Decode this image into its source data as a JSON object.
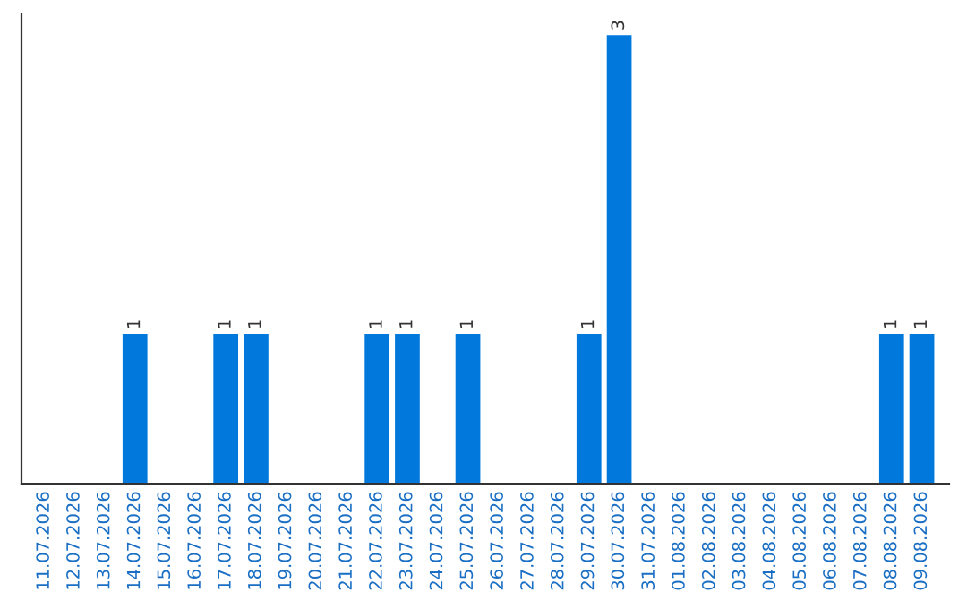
{
  "chart_data": {
    "type": "bar",
    "categories": [
      "11.07.2026",
      "12.07.2026",
      "13.07.2026",
      "14.07.2026",
      "15.07.2026",
      "16.07.2026",
      "17.07.2026",
      "18.07.2026",
      "19.07.2026",
      "20.07.2026",
      "21.07.2026",
      "22.07.2026",
      "23.07.2026",
      "24.07.2026",
      "25.07.2026",
      "26.07.2026",
      "27.07.2026",
      "28.07.2026",
      "29.07.2026",
      "30.07.2026",
      "31.07.2026",
      "01.08.2026",
      "02.08.2026",
      "03.08.2026",
      "04.08.2026",
      "05.08.2026",
      "06.08.2026",
      "07.08.2026",
      "08.08.2026",
      "09.08.2026"
    ],
    "values": [
      0,
      0,
      0,
      1,
      0,
      0,
      1,
      1,
      0,
      0,
      0,
      1,
      1,
      0,
      1,
      0,
      0,
      0,
      1,
      3,
      0,
      0,
      0,
      0,
      0,
      0,
      0,
      0,
      1,
      1
    ],
    "color": "#0078dc",
    "ylim": [
      0,
      3.14
    ],
    "value_labels": [
      null,
      null,
      null,
      "1",
      null,
      null,
      "1",
      "1",
      null,
      null,
      null,
      "1",
      "1",
      null,
      "1",
      null,
      null,
      null,
      "1",
      "3",
      null,
      null,
      null,
      null,
      null,
      null,
      null,
      null,
      "1",
      "1"
    ],
    "tick_labels": "x",
    "grid": false,
    "legend": false
  }
}
